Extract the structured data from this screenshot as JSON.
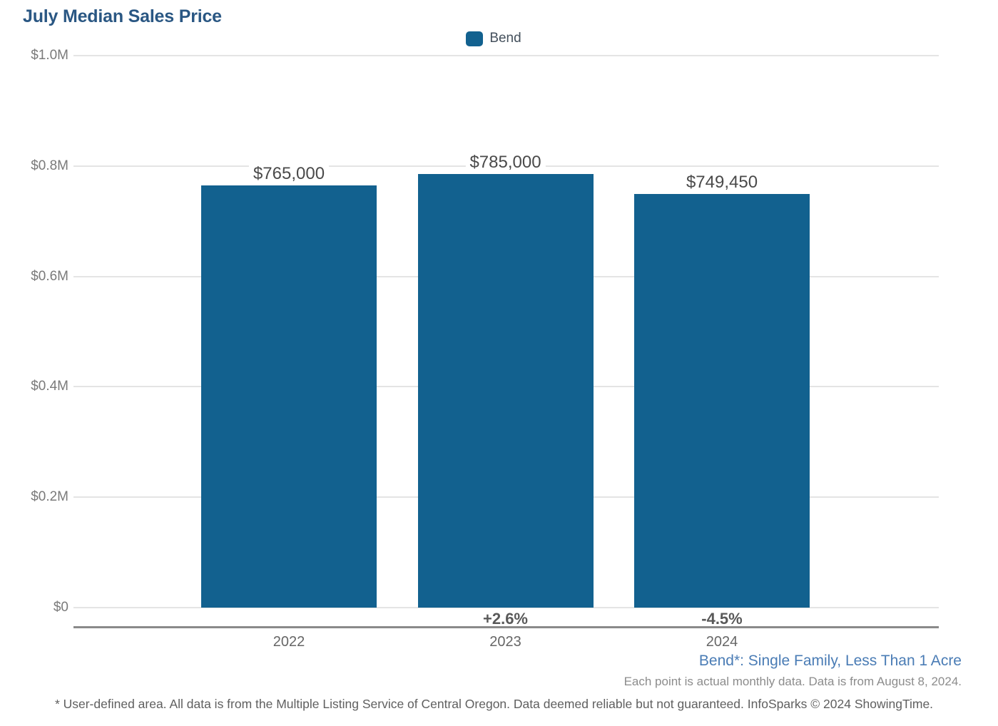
{
  "title": "July Median Sales Price",
  "legend": {
    "label": "Bend",
    "color": "#12618F"
  },
  "chart_data": {
    "type": "bar",
    "title": "July Median Sales Price",
    "categories": [
      "2022",
      "2023",
      "2024"
    ],
    "series": [
      {
        "name": "Bend",
        "values": [
          765000,
          785000,
          749450
        ]
      }
    ],
    "bar_labels": [
      "$765,000",
      "$785,000",
      "$749,450"
    ],
    "pct_change_labels": [
      "",
      "+2.6%",
      "-4.5%"
    ],
    "y_ticks": [
      {
        "label": "$1.0M",
        "value": 1000000
      },
      {
        "label": "$0.8M",
        "value": 800000
      },
      {
        "label": "$0.6M",
        "value": 600000
      },
      {
        "label": "$0.4M",
        "value": 400000
      },
      {
        "label": "$0.2M",
        "value": 200000
      },
      {
        "label": "$0",
        "value": 0
      }
    ],
    "ylim": [
      0,
      1000000
    ],
    "bar_color": "#12618F",
    "grid": true,
    "legend_position": "top-center"
  },
  "footnotes": {
    "series_note": "Bend*: Single Family, Less Than 1 Acre",
    "data_note": "Each point is actual monthly data. Data is from August 8, 2024.",
    "disclaimer": "* User-defined area. All data is from the Multiple Listing Service of Central Oregon. Data deemed reliable but not guaranteed. InfoSparks © 2024 ShowingTime."
  }
}
